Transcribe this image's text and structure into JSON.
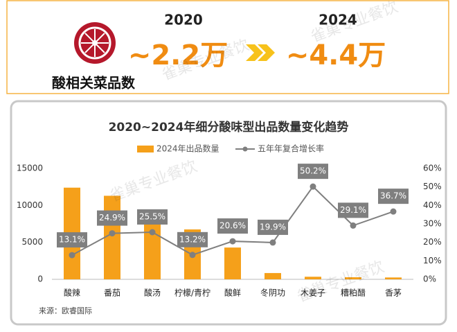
{
  "header": {
    "label": "酸相关菜品数",
    "year_from": "2020",
    "value_from": "~2.2万",
    "year_to": "2024",
    "value_to": "~4.4万"
  },
  "watermark": "雀巢专业餐饮",
  "chart_data": {
    "type": "bar_line",
    "title": "2020~2024年细分酸味型出品数量变化趋势",
    "categories": [
      "酸辣",
      "番茄",
      "酸汤",
      "柠檬/青柠",
      "酸鲜",
      "冬阴功",
      "木姜子",
      "糟粕醋",
      "香茅"
    ],
    "series": [
      {
        "name": "2024年出品数量",
        "type": "bar",
        "color": "#f5a01a",
        "values": [
          12400,
          11300,
          7500,
          6750,
          4300,
          850,
          350,
          280,
          250
        ]
      },
      {
        "name": "五年年复合增长率",
        "type": "line",
        "axis": "y2",
        "color": "#7f7f7f",
        "values": [
          13.1,
          24.9,
          25.5,
          13.2,
          20.6,
          19.9,
          50.2,
          29.1,
          36.7
        ],
        "value_labels": [
          "13.1%",
          "24.9%",
          "25.5%",
          "13.2%",
          "20.6%",
          "19.9%",
          "50.2%",
          "29.1%",
          "36.7%"
        ]
      }
    ],
    "ylim": [
      0,
      15000
    ],
    "yticks": [
      0,
      5000,
      10000,
      15000
    ],
    "y2lim": [
      0,
      60
    ],
    "y2ticks": [
      {
        "value": 0,
        "label": "0%"
      },
      {
        "value": 10,
        "label": "10%"
      },
      {
        "value": 20,
        "label": "20%"
      },
      {
        "value": 30,
        "label": "30%"
      },
      {
        "value": 40,
        "label": "40%"
      },
      {
        "value": 50,
        "label": "50%"
      },
      {
        "value": 60,
        "label": "60%"
      }
    ],
    "legend": "top",
    "source": "来源：欧睿国际"
  }
}
